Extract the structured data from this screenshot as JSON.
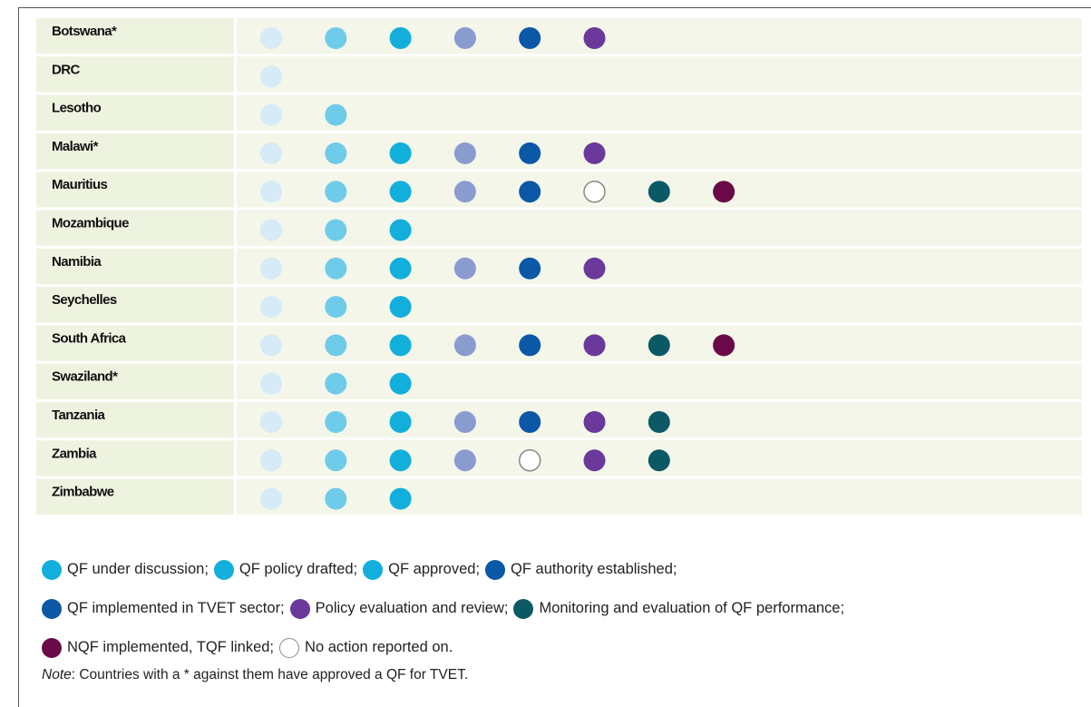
{
  "table": {
    "stage_colors": [
      "#d5ebf7",
      "#6fcbea",
      "#12afdc",
      "#8a9bd0",
      "#0b58a6",
      "#6b389b",
      "#0c5966",
      "#6a0a48"
    ],
    "open_color": "none",
    "rows": [
      {
        "name": "Botswana*",
        "cells": [
          1,
          1,
          1,
          1,
          1,
          1
        ]
      },
      {
        "name": "DRC",
        "cells": [
          1
        ]
      },
      {
        "name": "Lesotho",
        "cells": [
          1,
          1
        ]
      },
      {
        "name": "Malawi*",
        "cells": [
          1,
          1,
          1,
          1,
          1,
          1
        ]
      },
      {
        "name": "Mauritius",
        "cells": [
          1,
          1,
          1,
          1,
          1,
          0,
          1,
          1
        ]
      },
      {
        "name": "Mozambique",
        "cells": [
          1,
          1,
          1
        ]
      },
      {
        "name": "Namibia",
        "cells": [
          1,
          1,
          1,
          1,
          1,
          1
        ]
      },
      {
        "name": "Seychelles",
        "cells": [
          1,
          1,
          1
        ]
      },
      {
        "name": "South Africa",
        "cells": [
          1,
          1,
          1,
          1,
          1,
          1,
          1,
          1
        ]
      },
      {
        "name": "Swaziland*",
        "cells": [
          1,
          1,
          1
        ]
      },
      {
        "name": "Tanzania",
        "cells": [
          1,
          1,
          1,
          1,
          1,
          1,
          1
        ]
      },
      {
        "name": "Zambia",
        "cells": [
          1,
          1,
          1,
          1,
          0,
          1,
          1
        ]
      },
      {
        "name": "Zimbabwe",
        "cells": [
          1,
          1,
          1
        ]
      }
    ]
  },
  "legend": {
    "lines": [
      [
        {
          "color": "#12afdc",
          "label": "QF under discussion;"
        },
        {
          "color": "#12afdc",
          "label": "QF policy drafted;"
        },
        {
          "color": "#12afdc",
          "label": "QF approved;"
        },
        {
          "color": "#0b58a6",
          "label": "QF authority established;"
        }
      ],
      [
        {
          "color": "#0b58a6",
          "label": "QF implemented in TVET sector;"
        },
        {
          "color": "#6b389b",
          "label": "Policy evaluation and review;"
        },
        {
          "color": "#0c5966",
          "label": "Monitoring and evaluation of QF performance;"
        }
      ],
      [
        {
          "color": "#6a0a48",
          "label": "NQF implemented, TQF linked;"
        },
        {
          "color": "none",
          "label": "No action reported on."
        }
      ]
    ]
  },
  "note": {
    "label": "Note",
    "text": ": Countries with a * against them have approved a QF for TVET."
  }
}
